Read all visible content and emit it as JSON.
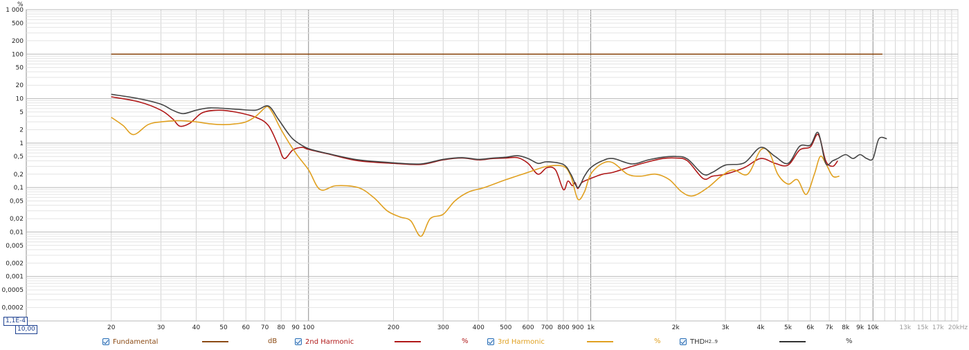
{
  "chart_data": {
    "type": "line",
    "y_unit": "%",
    "x_unit": "kHz",
    "y_scale": "log",
    "x_scale": "log",
    "ylim": [
      0.0001,
      1000
    ],
    "xlim": [
      10,
      20000
    ],
    "grid": true,
    "legend_placement": "bottom",
    "y_ticks": [
      "1 000",
      "500",
      "200",
      "100",
      "50",
      "20",
      "10",
      "5",
      "2",
      "1",
      "0,5",
      "0,2",
      "0,1",
      "0,05",
      "0,02",
      "0,01",
      "0,005",
      "0,002",
      "0,001",
      "0,0005",
      "0,0002"
    ],
    "x_ticks": [
      "20",
      "30",
      "40",
      "50",
      "60",
      "70",
      "80",
      "90",
      "100",
      "200",
      "300",
      "400",
      "500",
      "600",
      "700",
      "800",
      "900",
      "1k",
      "2k",
      "3k",
      "4k",
      "5k",
      "6k",
      "7k",
      "8k",
      "9k",
      "10k",
      "13k",
      "15k",
      "17k",
      "20kHz"
    ],
    "y_min_label": "1,1E-4",
    "x_min_label": "10,00",
    "series": [
      {
        "name": "Fundamental",
        "unit": "dB",
        "color": "#8b4a14",
        "points": [
          [
            20,
            100
          ],
          [
            10800,
            100
          ]
        ]
      },
      {
        "name": "2nd Harmonic",
        "unit": "%",
        "color": "#b01818",
        "points": [
          [
            20,
            11
          ],
          [
            25,
            8.5
          ],
          [
            30,
            5.5
          ],
          [
            33,
            3.5
          ],
          [
            35,
            2.4
          ],
          [
            38,
            2.8
          ],
          [
            42,
            4.8
          ],
          [
            48,
            5.5
          ],
          [
            55,
            5.0
          ],
          [
            65,
            3.8
          ],
          [
            72,
            2.5
          ],
          [
            78,
            0.9
          ],
          [
            82,
            0.45
          ],
          [
            88,
            0.7
          ],
          [
            95,
            0.8
          ],
          [
            100,
            0.72
          ],
          [
            120,
            0.55
          ],
          [
            150,
            0.4
          ],
          [
            200,
            0.35
          ],
          [
            250,
            0.33
          ],
          [
            300,
            0.42
          ],
          [
            350,
            0.46
          ],
          [
            400,
            0.42
          ],
          [
            450,
            0.45
          ],
          [
            500,
            0.46
          ],
          [
            550,
            0.47
          ],
          [
            600,
            0.35
          ],
          [
            650,
            0.2
          ],
          [
            700,
            0.28
          ],
          [
            750,
            0.25
          ],
          [
            800,
            0.09
          ],
          [
            830,
            0.14
          ],
          [
            860,
            0.11
          ],
          [
            880,
            0.13
          ],
          [
            900,
            0.095
          ],
          [
            930,
            0.13
          ],
          [
            1000,
            0.16
          ],
          [
            1100,
            0.2
          ],
          [
            1200,
            0.22
          ],
          [
            1400,
            0.3
          ],
          [
            1600,
            0.38
          ],
          [
            1800,
            0.45
          ],
          [
            2000,
            0.46
          ],
          [
            2200,
            0.4
          ],
          [
            2500,
            0.16
          ],
          [
            2700,
            0.18
          ],
          [
            3000,
            0.2
          ],
          [
            3500,
            0.28
          ],
          [
            4000,
            0.45
          ],
          [
            4500,
            0.35
          ],
          [
            5000,
            0.32
          ],
          [
            5500,
            0.7
          ],
          [
            6000,
            0.82
          ],
          [
            6400,
            1.55
          ],
          [
            6800,
            0.4
          ],
          [
            7200,
            0.3
          ],
          [
            7500,
            0.4
          ]
        ]
      },
      {
        "name": "3rd Harmonic",
        "unit": "%",
        "color": "#e0a020",
        "points": [
          [
            20,
            3.8
          ],
          [
            22,
            2.5
          ],
          [
            24,
            1.55
          ],
          [
            27,
            2.6
          ],
          [
            30,
            3.0
          ],
          [
            35,
            3.2
          ],
          [
            40,
            3.0
          ],
          [
            45,
            2.7
          ],
          [
            50,
            2.6
          ],
          [
            55,
            2.7
          ],
          [
            60,
            3.0
          ],
          [
            65,
            4.0
          ],
          [
            70,
            6.2
          ],
          [
            72,
            6.5
          ],
          [
            75,
            4.5
          ],
          [
            80,
            2.0
          ],
          [
            90,
            0.6
          ],
          [
            100,
            0.25
          ],
          [
            110,
            0.09
          ],
          [
            125,
            0.11
          ],
          [
            150,
            0.1
          ],
          [
            170,
            0.06
          ],
          [
            190,
            0.03
          ],
          [
            210,
            0.022
          ],
          [
            230,
            0.018
          ],
          [
            250,
            0.008
          ],
          [
            270,
            0.02
          ],
          [
            300,
            0.025
          ],
          [
            330,
            0.05
          ],
          [
            370,
            0.08
          ],
          [
            420,
            0.1
          ],
          [
            500,
            0.15
          ],
          [
            600,
            0.22
          ],
          [
            700,
            0.3
          ],
          [
            800,
            0.3
          ],
          [
            850,
            0.18
          ],
          [
            900,
            0.055
          ],
          [
            950,
            0.08
          ],
          [
            1000,
            0.2
          ],
          [
            1100,
            0.35
          ],
          [
            1200,
            0.36
          ],
          [
            1350,
            0.2
          ],
          [
            1500,
            0.18
          ],
          [
            1700,
            0.2
          ],
          [
            1900,
            0.15
          ],
          [
            2100,
            0.08
          ],
          [
            2300,
            0.065
          ],
          [
            2600,
            0.1
          ],
          [
            2900,
            0.18
          ],
          [
            3200,
            0.25
          ],
          [
            3600,
            0.2
          ],
          [
            4000,
            0.7
          ],
          [
            4300,
            0.6
          ],
          [
            4600,
            0.2
          ],
          [
            5000,
            0.12
          ],
          [
            5400,
            0.15
          ],
          [
            5800,
            0.07
          ],
          [
            6200,
            0.2
          ],
          [
            6500,
            0.5
          ],
          [
            6800,
            0.35
          ],
          [
            7200,
            0.18
          ],
          [
            7600,
            0.18
          ]
        ]
      },
      {
        "name": "THD",
        "name_sub": "H2..9",
        "unit": "%",
        "color": "#444444",
        "points": [
          [
            20,
            12.5
          ],
          [
            25,
            10
          ],
          [
            30,
            7.5
          ],
          [
            33,
            5.5
          ],
          [
            36,
            4.6
          ],
          [
            40,
            5.5
          ],
          [
            45,
            6.2
          ],
          [
            55,
            5.8
          ],
          [
            65,
            5.5
          ],
          [
            72,
            6.8
          ],
          [
            78,
            3.5
          ],
          [
            85,
            1.6
          ],
          [
            90,
            1.1
          ],
          [
            100,
            0.75
          ],
          [
            120,
            0.56
          ],
          [
            150,
            0.42
          ],
          [
            200,
            0.36
          ],
          [
            250,
            0.34
          ],
          [
            300,
            0.43
          ],
          [
            350,
            0.47
          ],
          [
            400,
            0.43
          ],
          [
            450,
            0.46
          ],
          [
            500,
            0.48
          ],
          [
            550,
            0.52
          ],
          [
            600,
            0.45
          ],
          [
            650,
            0.35
          ],
          [
            700,
            0.38
          ],
          [
            800,
            0.33
          ],
          [
            850,
            0.2
          ],
          [
            900,
            0.1
          ],
          [
            950,
            0.18
          ],
          [
            1000,
            0.28
          ],
          [
            1100,
            0.4
          ],
          [
            1200,
            0.45
          ],
          [
            1400,
            0.34
          ],
          [
            1600,
            0.42
          ],
          [
            1800,
            0.48
          ],
          [
            2000,
            0.5
          ],
          [
            2200,
            0.44
          ],
          [
            2500,
            0.2
          ],
          [
            2700,
            0.22
          ],
          [
            3000,
            0.32
          ],
          [
            3500,
            0.36
          ],
          [
            4000,
            0.8
          ],
          [
            4500,
            0.5
          ],
          [
            5000,
            0.35
          ],
          [
            5500,
            0.85
          ],
          [
            6000,
            0.9
          ],
          [
            6400,
            1.7
          ],
          [
            6800,
            0.35
          ],
          [
            7200,
            0.4
          ],
          [
            7500,
            0.45
          ],
          [
            8000,
            0.55
          ],
          [
            8500,
            0.45
          ],
          [
            9000,
            0.55
          ],
          [
            9500,
            0.45
          ],
          [
            10000,
            0.45
          ],
          [
            10500,
            1.25
          ],
          [
            11200,
            1.25
          ]
        ]
      }
    ]
  },
  "legend": [
    {
      "label": "Fundamental",
      "label_sub": "",
      "unit": "dB",
      "checked": true,
      "color": "#8b4a14"
    },
    {
      "label": "2nd Harmonic",
      "label_sub": "",
      "unit": "%",
      "checked": true,
      "color": "#b01818"
    },
    {
      "label": "3rd Harmonic",
      "label_sub": "",
      "unit": "%",
      "checked": true,
      "color": "#e0a020"
    },
    {
      "label": "THD",
      "label_sub": "H2..9",
      "unit": "%",
      "checked": true,
      "color": "#333333"
    }
  ]
}
